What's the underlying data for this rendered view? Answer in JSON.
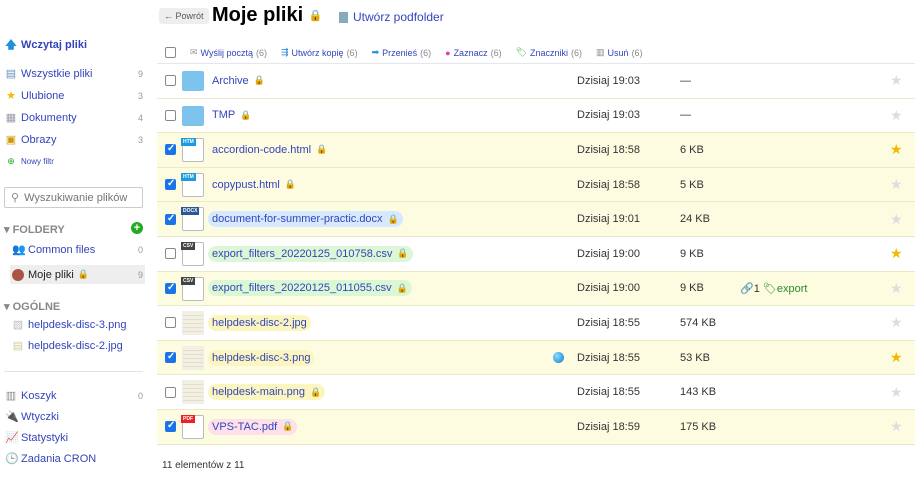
{
  "sidebar": {
    "upload": "Wczytaj pliki",
    "filters": [
      {
        "label": "Wszystkie pliki",
        "count": "9",
        "icon": "all-files-icon"
      },
      {
        "label": "Ulubione",
        "count": "3",
        "icon": "star-icon"
      },
      {
        "label": "Dokumenty",
        "count": "4",
        "icon": "document-icon"
      },
      {
        "label": "Obrazy",
        "count": "3",
        "icon": "image-icon"
      }
    ],
    "new_filter": "Nowy filtr",
    "search_placeholder": "Wyszukiwanie plików",
    "folders_title": "FOLDERY",
    "folders": [
      {
        "label": "Common files",
        "count": "0"
      },
      {
        "label": "Moje pliki",
        "count": "9"
      }
    ],
    "general_title": "OGÓLNE",
    "general": [
      {
        "label": "helpdesk-disc-3.png"
      },
      {
        "label": "helpdesk-disc-2.jpg"
      }
    ],
    "bottom": [
      {
        "label": "Koszyk",
        "count": "0"
      },
      {
        "label": "Wtyczki"
      },
      {
        "label": "Statystyki"
      },
      {
        "label": "Zadania CRON"
      }
    ]
  },
  "header": {
    "back": "← Powrót",
    "title": "Moje pliki",
    "create_subfolder": "Utwórz podfolder"
  },
  "toolbar": [
    {
      "label": "Wyślij pocztą",
      "count": "(6)",
      "icon": "mail-icon"
    },
    {
      "label": "Utwórz kopię",
      "count": "(6)",
      "icon": "copy-icon"
    },
    {
      "label": "Przenieś",
      "count": "(6)",
      "icon": "move-icon"
    },
    {
      "label": "Zaznacz",
      "count": "(6)",
      "icon": "color-icon"
    },
    {
      "label": "Znaczniki",
      "count": "(6)",
      "icon": "tag-icon"
    },
    {
      "label": "Usuń",
      "count": "(6)",
      "icon": "trash-icon"
    }
  ],
  "files": [
    {
      "name": "Archive",
      "type": "folder",
      "date": "Dzisiaj 19:03",
      "size": "—",
      "checked": false,
      "fav": false,
      "lock": true
    },
    {
      "name": "TMP",
      "type": "folder",
      "date": "Dzisiaj 19:03",
      "size": "—",
      "checked": false,
      "fav": false,
      "lock": true
    },
    {
      "name": "accordion-code.html",
      "type": "HTM",
      "date": "Dzisiaj 18:58",
      "size": "6 KB",
      "checked": true,
      "fav": true,
      "lock": true
    },
    {
      "name": "copypust.html",
      "type": "HTM",
      "date": "Dzisiaj 18:58",
      "size": "5 KB",
      "checked": true,
      "fav": false,
      "lock": true
    },
    {
      "name": "document-for-summer-practic.docx",
      "type": "DOCX",
      "date": "Dzisiaj 19:01",
      "size": "24 KB",
      "checked": true,
      "fav": false,
      "lock": true,
      "hl": "#d6e9ff"
    },
    {
      "name": "export_filters_20220125_010758.csv",
      "type": "CSV",
      "date": "Dzisiaj 19:00",
      "size": "9 KB",
      "checked": false,
      "fav": true,
      "lock": true,
      "hl": "#dcf7d6"
    },
    {
      "name": "export_filters_20220125_011055.csv",
      "type": "CSV",
      "date": "Dzisiaj 19:00",
      "size": "9 KB",
      "checked": true,
      "fav": false,
      "lock": true,
      "hl": "#dcf7d6",
      "links": "1",
      "tag": "export"
    },
    {
      "name": "helpdesk-disc-2.jpg",
      "type": "img",
      "date": "Dzisiaj 18:55",
      "size": "574 KB",
      "checked": false,
      "fav": false,
      "lock": false,
      "hl": "#fbf6c0"
    },
    {
      "name": "helpdesk-disc-3.png",
      "type": "img",
      "date": "Dzisiaj 18:55",
      "size": "53 KB",
      "checked": true,
      "fav": true,
      "lock": false,
      "hl": "#fbf6c0",
      "shared": true
    },
    {
      "name": "helpdesk-main.png",
      "type": "img",
      "date": "Dzisiaj 18:55",
      "size": "143 KB",
      "checked": false,
      "fav": false,
      "lock": true,
      "hl": "#fbf6c0"
    },
    {
      "name": "VPS-TAC.pdf",
      "type": "PDF",
      "date": "Dzisiaj 18:59",
      "size": "175 KB",
      "checked": true,
      "fav": false,
      "lock": true,
      "hl": "#fde0ea"
    }
  ],
  "footer": "11 elementów z 11",
  "colors": {
    "link": "#3344bb",
    "selected_row": "#fdfbe0",
    "star": "#f2b900",
    "tag": "#2a8a2a"
  }
}
